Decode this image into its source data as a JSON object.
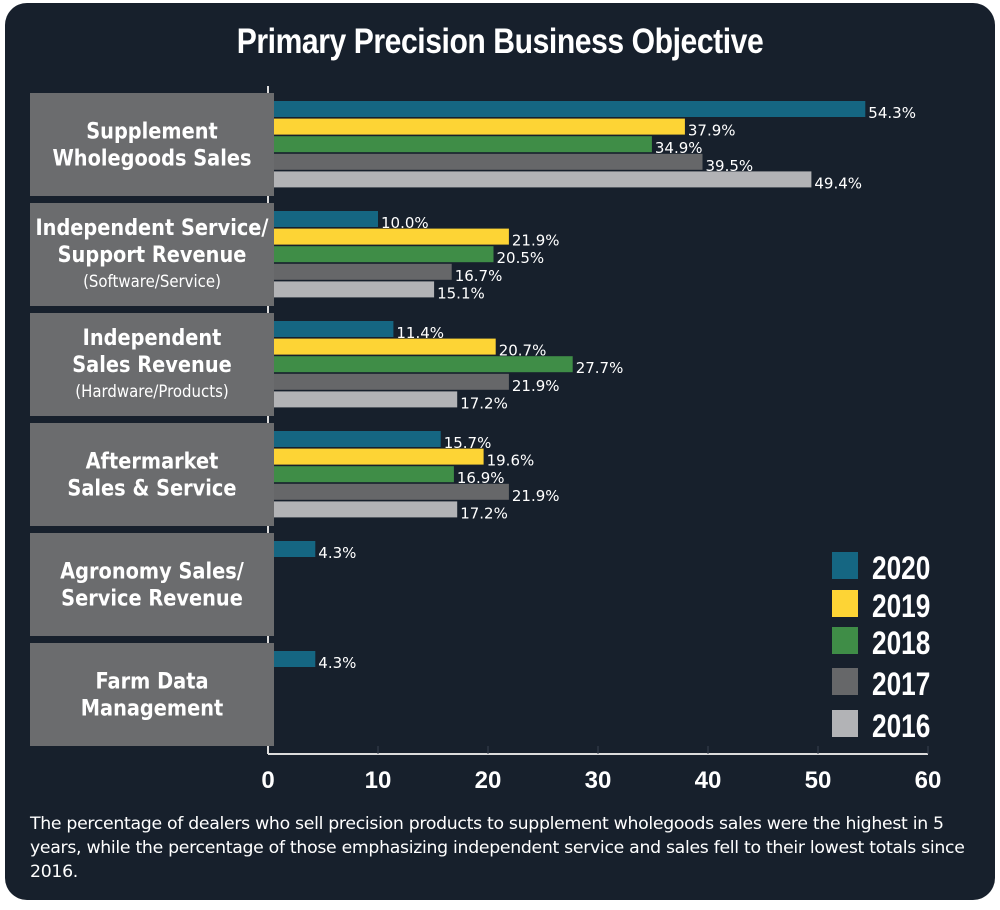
{
  "chart_data": {
    "type": "bar",
    "orientation": "horizontal",
    "title": "Primary Precision Business Objective",
    "xlabel": "",
    "ylabel": "",
    "xlim": [
      0,
      60
    ],
    "x_ticks": [
      0,
      10,
      20,
      30,
      40,
      50,
      60
    ],
    "grid": false,
    "legend_position": "bottom-right",
    "categories": [
      {
        "lines": [
          "Supplement",
          "Wholegoods Sales"
        ],
        "sub": ""
      },
      {
        "lines": [
          "Independent Service/",
          "Support Revenue"
        ],
        "sub": "(Software/Service)"
      },
      {
        "lines": [
          "Independent",
          "Sales Revenue"
        ],
        "sub": "(Hardware/Products)"
      },
      {
        "lines": [
          "Aftermarket",
          "Sales & Service"
        ],
        "sub": ""
      },
      {
        "lines": [
          "Agronomy Sales/",
          "Service Revenue"
        ],
        "sub": ""
      },
      {
        "lines": [
          "Farm Data",
          "Management"
        ],
        "sub": ""
      }
    ],
    "series": [
      {
        "name": "2020",
        "color": "#156682",
        "values": [
          54.3,
          10.0,
          11.4,
          15.7,
          4.3,
          4.3
        ],
        "labels": [
          "54.3%",
          "10.0%",
          "11.4%",
          "15.7%",
          "4.3%",
          "4.3%"
        ]
      },
      {
        "name": "2019",
        "color": "#fdd435",
        "values": [
          37.9,
          21.9,
          20.7,
          19.6,
          null,
          null
        ],
        "labels": [
          "37.9%",
          "21.9%",
          "20.7%",
          "19.6%",
          "",
          ""
        ]
      },
      {
        "name": "2018",
        "color": "#3f8d47",
        "values": [
          34.9,
          20.5,
          27.7,
          16.9,
          null,
          null
        ],
        "labels": [
          "34.9%",
          "20.5%",
          "27.7%",
          "16.9%",
          "",
          ""
        ]
      },
      {
        "name": "2017",
        "color": "#666769",
        "values": [
          39.5,
          16.7,
          21.9,
          21.9,
          null,
          null
        ],
        "labels": [
          "39.5%",
          "16.7%",
          "21.9%",
          "21.9%",
          "",
          ""
        ]
      },
      {
        "name": "2016",
        "color": "#b2b3b6",
        "values": [
          49.4,
          15.1,
          17.2,
          17.2,
          null,
          null
        ],
        "labels": [
          "49.4%",
          "15.1%",
          "17.2%",
          "17.2%",
          "",
          ""
        ]
      }
    ]
  },
  "footer": {
    "caption": "The percentage of dealers who sell precision products to supplement wholegoods sales were the highest in 5 years, while the percentage of those emphasizing independent service and sales fell to their lowest totals since 2016."
  },
  "colors": {
    "background": "#17202c",
    "label_box": "#6b6c6e",
    "text": "#ffffff"
  }
}
